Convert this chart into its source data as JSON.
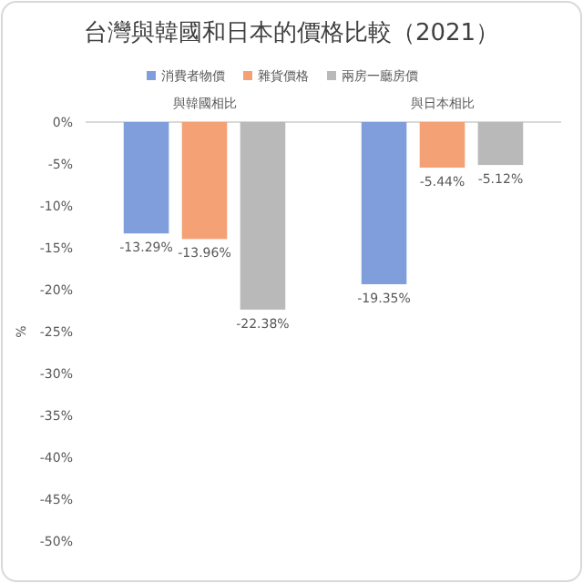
{
  "chart_data": {
    "type": "bar",
    "title": "台灣與韓國和日本的價格比較（2021）",
    "ylabel": "%",
    "categories": [
      "與韓國相比",
      "與日本相比"
    ],
    "series": [
      {
        "name": "消費者物價",
        "color": "#7f9edb",
        "values": [
          -13.29,
          -19.35
        ],
        "value_labels": [
          "-13.29%",
          "-19.35%"
        ]
      },
      {
        "name": "雜貨價格",
        "color": "#f3a175",
        "values": [
          -13.96,
          -5.44
        ],
        "value_labels": [
          "-13.96%",
          "-5.44%"
        ]
      },
      {
        "name": "兩房一廳房價",
        "color": "#b9b9b9",
        "values": [
          -22.38,
          -5.12
        ],
        "value_labels": [
          "-22.38%",
          "-5.12%"
        ]
      }
    ],
    "ylim": [
      -50,
      0
    ],
    "yticks": [
      {
        "value": 0,
        "label": "0%"
      },
      {
        "value": -5,
        "label": "-5%"
      },
      {
        "value": -10,
        "label": "-10%"
      },
      {
        "value": -15,
        "label": "-15%"
      },
      {
        "value": -20,
        "label": "-20%"
      },
      {
        "value": -25,
        "label": "-25%"
      },
      {
        "value": -30,
        "label": "-30%"
      },
      {
        "value": -35,
        "label": "-35%"
      },
      {
        "value": -40,
        "label": "-40%"
      },
      {
        "value": -45,
        "label": "-45%"
      },
      {
        "value": -50,
        "label": "-50%"
      }
    ],
    "grid": false,
    "legend": "top"
  }
}
